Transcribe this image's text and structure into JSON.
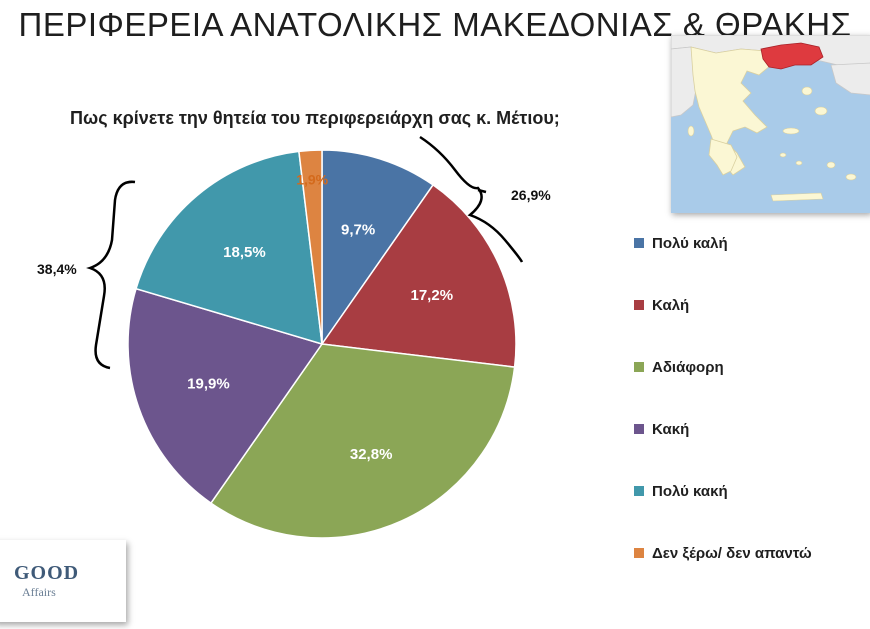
{
  "page_title": "ΠΕΡΙΦΕΡΕΙΑ ΑΝΑΤΟΛΙΚΗΣ ΜΑΚΕΔΟΝΙΑΣ & ΘΡΑΚΗΣ",
  "logo": {
    "brand": "GOOD",
    "sub": "Affairs"
  },
  "chart_data": {
    "type": "pie",
    "title": "Πως κρίνετε την θητεία του περιφερειάρχη σας κ. Μέτιου;",
    "legend_position": "right",
    "slices": [
      {
        "label": "Πολύ καλή",
        "value": 9.7,
        "display": "9,7%",
        "color": "#4a74a5"
      },
      {
        "label": "Καλή",
        "value": 17.2,
        "display": "17,2%",
        "color": "#a83d42"
      },
      {
        "label": "Αδιάφορη",
        "value": 32.8,
        "display": "32,8%",
        "color": "#8ba656"
      },
      {
        "label": "Κακή",
        "value": 19.9,
        "display": "19,9%",
        "color": "#6c558d"
      },
      {
        "label": "Πολύ κακή",
        "value": 18.5,
        "display": "18,5%",
        "color": "#4198ab"
      },
      {
        "label": "Δεν ξέρω/ δεν απαντώ",
        "value": 1.9,
        "display": "1,9%",
        "color": "#dd8441"
      }
    ],
    "annotations": [
      {
        "text": "26,9%",
        "groups": [
          "Πολύ καλή",
          "Καλή"
        ]
      },
      {
        "text": "38,4%",
        "groups": [
          "Κακή",
          "Πολύ κακή"
        ]
      }
    ]
  }
}
